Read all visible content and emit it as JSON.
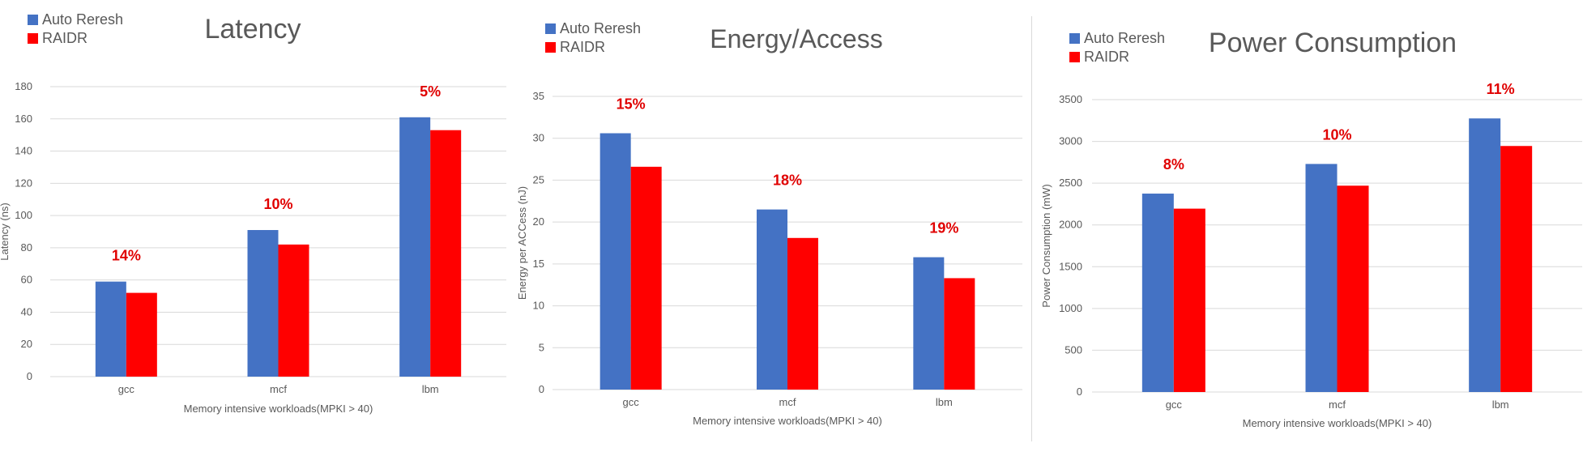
{
  "chart_data": [
    {
      "type": "bar",
      "title": "Latency",
      "xlabel": "Memory intensive workloads(MPKI > 40)",
      "ylabel": "Latency (ns)",
      "categories": [
        "gcc",
        "mcf",
        "lbm"
      ],
      "series": [
        {
          "name": "Auto Reresh",
          "values": [
            59,
            91,
            161
          ]
        },
        {
          "name": "RAIDR",
          "values": [
            52,
            82,
            153
          ]
        }
      ],
      "annotations": [
        "14%",
        "10%",
        "5%"
      ],
      "ylim": [
        0,
        180
      ],
      "yticks": [
        0,
        20,
        40,
        60,
        80,
        100,
        120,
        140,
        160,
        180
      ],
      "grid": true,
      "legend_position": "top-left"
    },
    {
      "type": "bar",
      "title": "Energy/Access",
      "xlabel": "Memory intensive workloads(MPKI > 40)",
      "ylabel": "Energy per ACCess (nJ)",
      "categories": [
        "gcc",
        "mcf",
        "lbm"
      ],
      "series": [
        {
          "name": "Auto Reresh",
          "values": [
            30.6,
            21.5,
            15.8
          ]
        },
        {
          "name": "RAIDR",
          "values": [
            26.6,
            18.1,
            13.3
          ]
        }
      ],
      "annotations": [
        "15%",
        "18%",
        "19%"
      ],
      "ylim": [
        0,
        35
      ],
      "yticks": [
        0,
        5,
        10,
        15,
        20,
        25,
        30,
        35
      ],
      "grid": true,
      "legend_position": "top-left"
    },
    {
      "type": "bar",
      "title": "Power Consumption",
      "xlabel": "Memory intensive workloads(MPKI > 40)",
      "ylabel": "Power Consumption (mW)",
      "categories": [
        "gcc",
        "mcf",
        "lbm"
      ],
      "series": [
        {
          "name": "Auto Reresh",
          "values": [
            2375,
            2730,
            3275
          ]
        },
        {
          "name": "RAIDR",
          "values": [
            2195,
            2470,
            2945
          ]
        }
      ],
      "annotations": [
        "8%",
        "10%",
        "11%"
      ],
      "ylim": [
        0,
        3500
      ],
      "yticks": [
        0,
        500,
        1000,
        1500,
        2000,
        2500,
        3000,
        3500
      ],
      "grid": true,
      "legend_position": "top-left"
    }
  ],
  "colors": {
    "series_1": "#4472c4",
    "series_2": "#ff0000",
    "annotation": "#e00000",
    "grid": "#d9d9d9",
    "text": "#595959"
  }
}
